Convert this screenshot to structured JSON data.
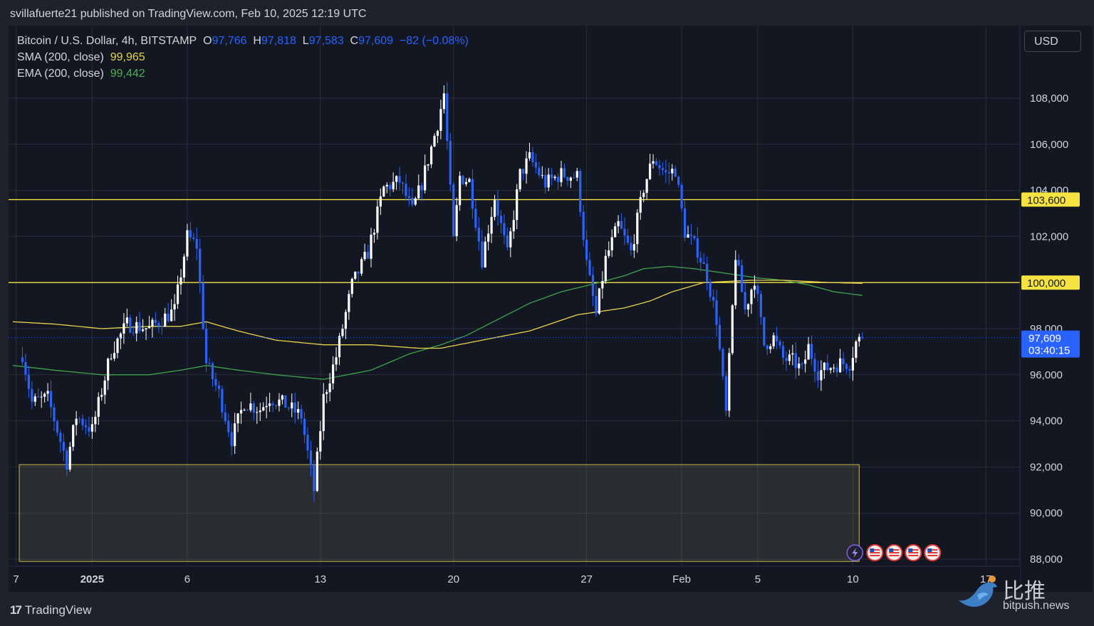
{
  "header": {
    "published": "svillafuerte21 published on TradingView.com, Feb 10, 2025 12:19 UTC"
  },
  "legend": {
    "symbol": "Bitcoin / U.S. Dollar, 4h, BITSTAMP",
    "o_label": "O",
    "o_value": "97,766",
    "h_label": "H",
    "h_value": "97,818",
    "l_label": "L",
    "l_value": "97,583",
    "c_label": "C",
    "c_value": "97,609",
    "change": "−82 (−0.08%)",
    "sma_label": "SMA (200, close)",
    "sma_value": "99,965",
    "ema_label": "EMA (200, close)",
    "ema_value": "99,442"
  },
  "currency_button": "USD",
  "footer": {
    "brand": "TradingView",
    "brand_mark": "17"
  },
  "watermark": {
    "cn": "比推",
    "en": "bitpush.news"
  },
  "chart_data": {
    "type": "candlestick",
    "symbol": "BTCUSD",
    "interval": "4h",
    "ylim": [
      87800,
      110000
    ],
    "y_ticks": [
      88000,
      90000,
      92000,
      94000,
      96000,
      98000,
      100000,
      102000,
      104000,
      106000,
      108000
    ],
    "y_tick_labels": [
      "88,000",
      "90,000",
      "92,000",
      "94,000",
      "96,000",
      "98,000",
      "100,000",
      "102,000",
      "104,000",
      "106,000",
      "108,000"
    ],
    "x_ticks": [
      {
        "label": "7",
        "bar": -2
      },
      {
        "label": "2025",
        "bar": 22
      },
      {
        "label": "6",
        "bar": 52
      },
      {
        "label": "13",
        "bar": 94
      },
      {
        "label": "20",
        "bar": 136
      },
      {
        "label": "27",
        "bar": 178
      },
      {
        "label": "Feb",
        "bar": 208
      },
      {
        "label": "5",
        "bar": 232
      },
      {
        "label": "10",
        "bar": 262
      },
      {
        "label": "17",
        "bar": 304
      }
    ],
    "x_axis_bold": [
      "2025"
    ],
    "last_price": {
      "value": 97609,
      "label": "97,609",
      "countdown": "03:40:15"
    },
    "horizontal_levels": [
      {
        "value": 103600,
        "label": "103,600",
        "color": "#f5e342"
      },
      {
        "value": 100000,
        "label": "100,000",
        "color": "#f5e342"
      }
    ],
    "zone": {
      "top": 92100,
      "bottom": 87900,
      "from_bar": -1,
      "to_bar": 264
    },
    "close_waypoints": [
      [
        0,
        96900
      ],
      [
        3,
        94800
      ],
      [
        8,
        95000
      ],
      [
        14,
        92200
      ],
      [
        17,
        94200
      ],
      [
        22,
        93600
      ],
      [
        28,
        97000
      ],
      [
        33,
        98200
      ],
      [
        40,
        98000
      ],
      [
        48,
        98800
      ],
      [
        52,
        102000
      ],
      [
        55,
        101600
      ],
      [
        58,
        96500
      ],
      [
        62,
        95200
      ],
      [
        66,
        93200
      ],
      [
        70,
        94800
      ],
      [
        75,
        94500
      ],
      [
        78,
        95000
      ],
      [
        83,
        94700
      ],
      [
        88,
        94200
      ],
      [
        92,
        91000
      ],
      [
        95,
        95000
      ],
      [
        99,
        96800
      ],
      [
        104,
        99900
      ],
      [
        109,
        101300
      ],
      [
        114,
        104100
      ],
      [
        119,
        104400
      ],
      [
        123,
        103100
      ],
      [
        126,
        104300
      ],
      [
        131,
        106900
      ],
      [
        133,
        108200
      ],
      [
        136,
        101800
      ],
      [
        138,
        104600
      ],
      [
        141,
        104400
      ],
      [
        145,
        101000
      ],
      [
        149,
        103700
      ],
      [
        153,
        101200
      ],
      [
        157,
        104700
      ],
      [
        160,
        105400
      ],
      [
        165,
        104300
      ],
      [
        170,
        104700
      ],
      [
        175,
        104600
      ],
      [
        178,
        100800
      ],
      [
        181,
        98600
      ],
      [
        184,
        101000
      ],
      [
        188,
        102500
      ],
      [
        192,
        101300
      ],
      [
        196,
        104100
      ],
      [
        199,
        105400
      ],
      [
        203,
        104700
      ],
      [
        206,
        104900
      ],
      [
        209,
        102200
      ],
      [
        213,
        101400
      ],
      [
        216,
        100300
      ],
      [
        219,
        98400
      ],
      [
        222,
        94300
      ],
      [
        225,
        101200
      ],
      [
        228,
        98800
      ],
      [
        231,
        100200
      ],
      [
        234,
        97300
      ],
      [
        237,
        97600
      ],
      [
        240,
        96700
      ],
      [
        243,
        96600
      ],
      [
        246,
        96200
      ],
      [
        248,
        97200
      ],
      [
        251,
        96100
      ],
      [
        254,
        96300
      ],
      [
        258,
        96500
      ],
      [
        261,
        96500
      ],
      [
        263,
        97400
      ],
      [
        265,
        97609
      ]
    ],
    "sma_waypoints": [
      [
        -3,
        98300
      ],
      [
        10,
        98200
      ],
      [
        25,
        98000
      ],
      [
        40,
        98100
      ],
      [
        50,
        98100
      ],
      [
        58,
        98300
      ],
      [
        68,
        97900
      ],
      [
        80,
        97500
      ],
      [
        95,
        97300
      ],
      [
        110,
        97300
      ],
      [
        125,
        97150
      ],
      [
        132,
        97150
      ],
      [
        145,
        97500
      ],
      [
        160,
        97900
      ],
      [
        175,
        98600
      ],
      [
        190,
        98900
      ],
      [
        198,
        99200
      ],
      [
        205,
        99600
      ],
      [
        215,
        100000
      ],
      [
        230,
        100100
      ],
      [
        240,
        100100
      ],
      [
        255,
        100000
      ],
      [
        265,
        99965
      ]
    ],
    "ema_waypoints": [
      [
        -3,
        96400
      ],
      [
        10,
        96200
      ],
      [
        25,
        96000
      ],
      [
        40,
        96000
      ],
      [
        50,
        96200
      ],
      [
        58,
        96400
      ],
      [
        68,
        96200
      ],
      [
        80,
        96000
      ],
      [
        95,
        95800
      ],
      [
        110,
        96200
      ],
      [
        122,
        96900
      ],
      [
        132,
        97300
      ],
      [
        140,
        97700
      ],
      [
        150,
        98400
      ],
      [
        160,
        99100
      ],
      [
        170,
        99600
      ],
      [
        182,
        100000
      ],
      [
        190,
        100300
      ],
      [
        196,
        100600
      ],
      [
        204,
        100700
      ],
      [
        212,
        100600
      ],
      [
        222,
        100400
      ],
      [
        232,
        100200
      ],
      [
        240,
        100100
      ],
      [
        248,
        99900
      ],
      [
        256,
        99600
      ],
      [
        265,
        99442
      ]
    ]
  }
}
